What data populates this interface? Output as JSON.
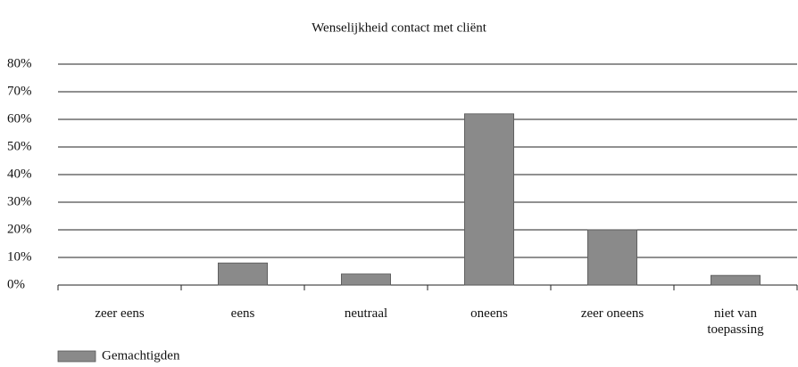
{
  "chart_data": {
    "type": "bar",
    "title": "Wenselijkheid contact met cliënt",
    "categories": [
      "zeer eens",
      "eens",
      "neutraal",
      "oneens",
      "zeer oneens",
      "niet van toepassing"
    ],
    "series": [
      {
        "name": "Gemachtigden",
        "color": "#8a8a8a",
        "values": [
          0,
          8,
          4,
          62,
          20,
          3.5
        ]
      }
    ],
    "ylim": [
      0,
      80
    ],
    "yticks": [
      {
        "value": 0,
        "label": "0%"
      },
      {
        "value": 10,
        "label": "10%"
      },
      {
        "value": 20,
        "label": "20%"
      },
      {
        "value": 30,
        "label": "30%"
      },
      {
        "value": 40,
        "label": "40%"
      },
      {
        "value": 50,
        "label": "50%"
      },
      {
        "value": 60,
        "label": "60%"
      },
      {
        "value": 70,
        "label": "70%"
      },
      {
        "value": 80,
        "label": "80%"
      }
    ],
    "grid": true,
    "legend": "bottom-left"
  }
}
